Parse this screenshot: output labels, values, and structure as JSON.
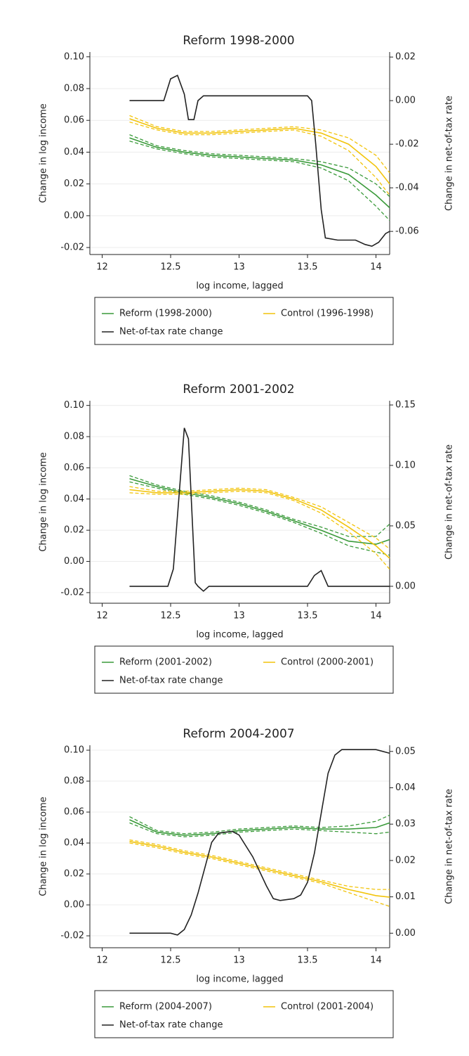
{
  "chart_data": [
    {
      "type": "line",
      "title": "Reform 1998-2000",
      "xlabel": "log income, lagged",
      "ylabel": "Change in log income",
      "y2label": "Change in net-of-tax rate",
      "xlim": [
        11.91,
        14.1
      ],
      "xticks": [
        12,
        12.5,
        13,
        13.5,
        14
      ],
      "ylim": [
        -0.0244,
        0.103
      ],
      "yticks": [
        {
          "value": -0.02,
          "label": "-0.02"
        },
        {
          "value": 0,
          "label": "0.00"
        },
        {
          "value": 0.02,
          "label": "0.02"
        },
        {
          "value": 0.04,
          "label": "0.04"
        },
        {
          "value": 0.06,
          "label": "0.06"
        },
        {
          "value": 0.08,
          "label": "0.08"
        },
        {
          "value": 0.1,
          "label": "0.10"
        }
      ],
      "y2lim": [
        -0.0706,
        0.0223
      ],
      "y2ticks": [
        {
          "value": -0.06,
          "label": "-0.06"
        },
        {
          "value": -0.04,
          "label": "-0.04"
        },
        {
          "value": -0.02,
          "label": "-0.02"
        },
        {
          "value": 0,
          "label": "0.00"
        },
        {
          "value": 0.02,
          "label": "0.02"
        }
      ],
      "grid": true,
      "series": [
        {
          "name": "Reform (1998-2000)",
          "color": "#3a9a3a",
          "x": [
            12.2,
            12.4,
            12.6,
            12.8,
            13,
            13.2,
            13.4,
            13.6,
            13.8,
            14,
            14.1
          ],
          "values": [
            0.049,
            0.043,
            0.04,
            0.038,
            0.037,
            0.036,
            0.035,
            0.032,
            0.026,
            0.013,
            0.005
          ],
          "lower": [
            0.047,
            0.042,
            0.039,
            0.037,
            0.036,
            0.035,
            0.034,
            0.03,
            0.022,
            0.006,
            -0.003
          ],
          "upper": [
            0.051,
            0.044,
            0.041,
            0.039,
            0.038,
            0.037,
            0.036,
            0.034,
            0.03,
            0.02,
            0.012
          ]
        },
        {
          "name": "Control (1996-1998)",
          "color": "#f2c40c",
          "x": [
            12.2,
            12.4,
            12.6,
            12.8,
            13,
            13.2,
            13.4,
            13.6,
            13.8,
            14,
            14.1
          ],
          "values": [
            0.061,
            0.055,
            0.052,
            0.052,
            0.053,
            0.054,
            0.055,
            0.052,
            0.045,
            0.031,
            0.02
          ],
          "lower": [
            0.059,
            0.054,
            0.051,
            0.051,
            0.052,
            0.053,
            0.054,
            0.05,
            0.041,
            0.024,
            0.013
          ],
          "upper": [
            0.063,
            0.056,
            0.053,
            0.053,
            0.054,
            0.055,
            0.056,
            0.054,
            0.049,
            0.038,
            0.027
          ]
        },
        {
          "name": "Net-of-tax rate change",
          "color": "#222222",
          "axis": "y2",
          "x": [
            12.2,
            12.45,
            12.5,
            12.55,
            12.6,
            12.63,
            12.67,
            12.7,
            12.74,
            13.5,
            13.53,
            13.56,
            13.6,
            13.63,
            13.72,
            13.85,
            13.92,
            13.97,
            14.02,
            14.07,
            14.1
          ],
          "values": [
            0,
            0,
            0.01,
            0.0116,
            0.003,
            -0.0087,
            -0.0087,
            0,
            0.0022,
            0.0022,
            0,
            -0.02,
            -0.05,
            -0.063,
            -0.064,
            -0.064,
            -0.066,
            -0.0668,
            -0.065,
            -0.061,
            -0.06
          ]
        }
      ]
    },
    {
      "type": "line",
      "title": "Reform 2001-2002",
      "xlabel": "log income, lagged",
      "ylabel": "Change in log income",
      "y2label": "Change in net-of-tax rate",
      "xlim": [
        11.91,
        14.1
      ],
      "xticks": [
        12,
        12.5,
        13,
        13.5,
        14
      ],
      "ylim": [
        -0.0268,
        0.103
      ],
      "yticks": [
        {
          "value": -0.02,
          "label": "-0.02"
        },
        {
          "value": 0,
          "label": "0.00"
        },
        {
          "value": 0.02,
          "label": "0.02"
        },
        {
          "value": 0.04,
          "label": "0.04"
        },
        {
          "value": 0.06,
          "label": "0.06"
        },
        {
          "value": 0.08,
          "label": "0.08"
        },
        {
          "value": 0.1,
          "label": "0.10"
        }
      ],
      "y2lim": [
        -0.014,
        0.1535
      ],
      "y2ticks": [
        {
          "value": 0,
          "label": "0.00"
        },
        {
          "value": 0.05,
          "label": "0.05"
        },
        {
          "value": 0.1,
          "label": "0.10"
        },
        {
          "value": 0.15,
          "label": "0.15"
        }
      ],
      "grid": true,
      "series": [
        {
          "name": "Reform (2001-2002)",
          "color": "#3a9a3a",
          "x": [
            12.2,
            12.4,
            12.6,
            12.8,
            13,
            13.2,
            13.4,
            13.6,
            13.8,
            14,
            14.1
          ],
          "values": [
            0.053,
            0.048,
            0.044,
            0.041,
            0.037,
            0.032,
            0.026,
            0.02,
            0.013,
            0.011,
            0.014
          ],
          "lower": [
            0.051,
            0.047,
            0.043,
            0.04,
            0.036,
            0.031,
            0.025,
            0.018,
            0.01,
            0.006,
            0.004
          ],
          "upper": [
            0.055,
            0.049,
            0.045,
            0.042,
            0.038,
            0.033,
            0.027,
            0.022,
            0.016,
            0.016,
            0.024
          ]
        },
        {
          "name": "Control (2000-2001)",
          "color": "#f2c40c",
          "x": [
            12.2,
            12.4,
            12.6,
            12.8,
            13,
            13.2,
            13.4,
            13.6,
            13.8,
            14,
            14.1
          ],
          "values": [
            0.046,
            0.044,
            0.044,
            0.045,
            0.046,
            0.045,
            0.04,
            0.033,
            0.022,
            0.01,
            0.002
          ],
          "lower": [
            0.044,
            0.043,
            0.043,
            0.044,
            0.045,
            0.044,
            0.039,
            0.031,
            0.019,
            0.005,
            -0.005
          ],
          "upper": [
            0.048,
            0.045,
            0.045,
            0.046,
            0.047,
            0.046,
            0.041,
            0.035,
            0.025,
            0.015,
            0.008
          ]
        },
        {
          "name": "Net-of-tax rate change",
          "color": "#222222",
          "axis": "y2",
          "x": [
            12.2,
            12.48,
            12.52,
            12.6,
            12.63,
            12.68,
            12.7,
            12.74,
            12.78,
            13.5,
            13.55,
            13.6,
            13.65,
            14.1
          ],
          "values": [
            0,
            0,
            0.0143,
            0.131,
            0.122,
            0.003,
            0,
            -0.004,
            0,
            0,
            0.009,
            0.013,
            0,
            0
          ]
        }
      ]
    },
    {
      "type": "line",
      "title": "Reform 2004-2007",
      "xlabel": "log income, lagged",
      "ylabel": "Change in log income",
      "y2label": "Change in net-of-tax rate",
      "xlim": [
        11.91,
        14.1
      ],
      "xticks": [
        12,
        12.5,
        13,
        13.5,
        14
      ],
      "ylim": [
        -0.0277,
        0.1032
      ],
      "yticks": [
        {
          "value": -0.02,
          "label": "-0.02"
        },
        {
          "value": 0,
          "label": "0.00"
        },
        {
          "value": 0.02,
          "label": "0.02"
        },
        {
          "value": 0.04,
          "label": "0.04"
        },
        {
          "value": 0.06,
          "label": "0.06"
        },
        {
          "value": 0.08,
          "label": "0.08"
        },
        {
          "value": 0.1,
          "label": "0.10"
        }
      ],
      "y2lim": [
        -0.004,
        0.0517
      ],
      "y2ticks": [
        {
          "value": 0,
          "label": "0.00"
        },
        {
          "value": 0.01,
          "label": "0.01"
        },
        {
          "value": 0.02,
          "label": "0.02"
        },
        {
          "value": 0.03,
          "label": "0.03"
        },
        {
          "value": 0.04,
          "label": "0.04"
        },
        {
          "value": 0.05,
          "label": "0.05"
        }
      ],
      "grid": true,
      "series": [
        {
          "name": "Reform (2004-2007)",
          "color": "#3a9a3a",
          "x": [
            12.2,
            12.4,
            12.6,
            12.8,
            13,
            13.2,
            13.4,
            13.6,
            13.8,
            14,
            14.1
          ],
          "values": [
            0.055,
            0.047,
            0.045,
            0.046,
            0.048,
            0.049,
            0.05,
            0.049,
            0.049,
            0.05,
            0.053
          ],
          "lower": [
            0.053,
            0.046,
            0.044,
            0.045,
            0.047,
            0.048,
            0.049,
            0.048,
            0.047,
            0.046,
            0.047
          ],
          "upper": [
            0.057,
            0.048,
            0.046,
            0.047,
            0.049,
            0.05,
            0.051,
            0.05,
            0.051,
            0.054,
            0.058
          ]
        },
        {
          "name": "Control (2001-2004)",
          "color": "#f2c40c",
          "x": [
            12.2,
            12.4,
            12.6,
            12.8,
            13,
            13.2,
            13.4,
            13.6,
            13.8,
            14,
            14.1
          ],
          "values": [
            0.041,
            0.038,
            0.034,
            0.031,
            0.027,
            0.023,
            0.019,
            0.015,
            0.01,
            0.006,
            0.005
          ],
          "lower": [
            0.04,
            0.037,
            0.033,
            0.03,
            0.026,
            0.022,
            0.018,
            0.014,
            0.008,
            0.002,
            -0.001
          ],
          "upper": [
            0.042,
            0.039,
            0.035,
            0.032,
            0.028,
            0.024,
            0.02,
            0.016,
            0.012,
            0.01,
            0.01
          ]
        },
        {
          "name": "Net-of-tax rate change",
          "color": "#222222",
          "axis": "y2",
          "x": [
            12.2,
            12.5,
            12.55,
            12.6,
            12.65,
            12.7,
            12.75,
            12.8,
            12.85,
            12.95,
            13,
            13.1,
            13.2,
            13.25,
            13.3,
            13.4,
            13.45,
            13.5,
            13.55,
            13.6,
            13.65,
            13.7,
            13.75,
            13.9,
            14,
            14.1
          ],
          "values": [
            0,
            0,
            -0.0005,
            0.001,
            0.005,
            0.011,
            0.018,
            0.025,
            0.0275,
            0.028,
            0.027,
            0.021,
            0.013,
            0.0095,
            0.009,
            0.0095,
            0.0105,
            0.014,
            0.022,
            0.033,
            0.044,
            0.049,
            0.0505,
            0.0505,
            0.0505,
            0.0495
          ]
        }
      ]
    }
  ]
}
